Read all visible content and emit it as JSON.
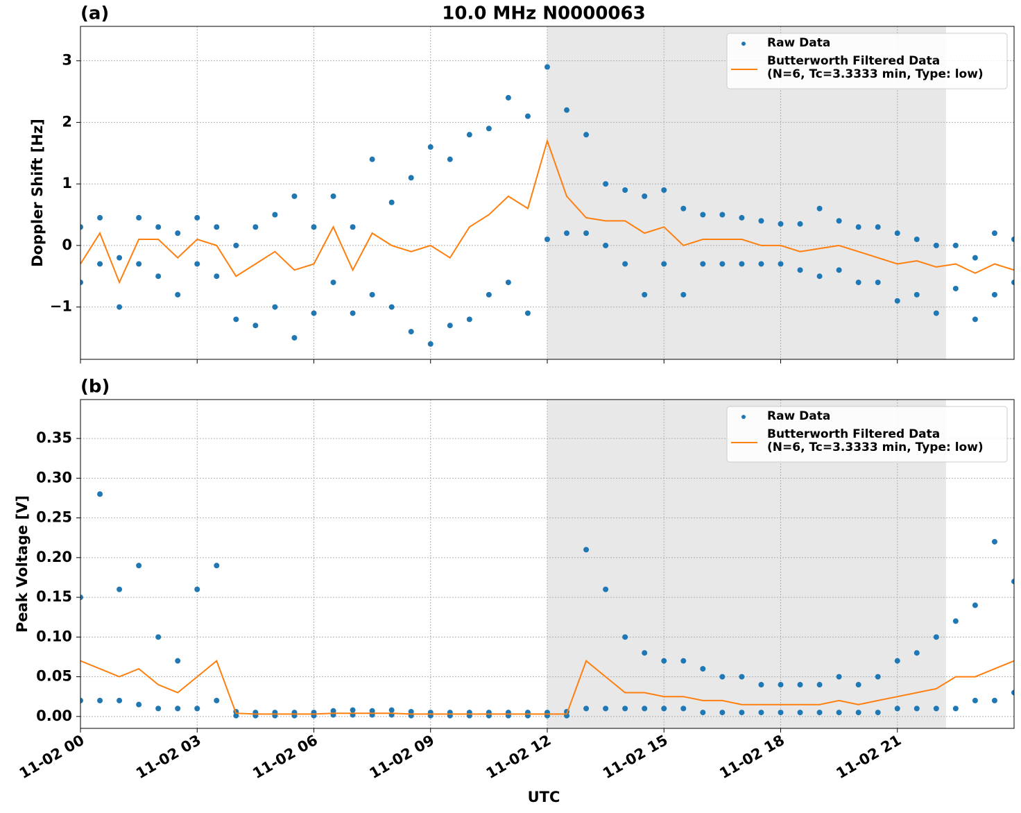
{
  "chart_data": [
    {
      "type": "scatter_line",
      "title": "10.0 MHz N0000063",
      "panel_label": "(a)",
      "ylabel": "Doppler Shift [Hz]",
      "xlim": [
        0,
        24
      ],
      "xticks": [
        0,
        3,
        6,
        9,
        12,
        15,
        18,
        21
      ],
      "show_xtick_labels": false,
      "ylim": [
        -1.85,
        3.56
      ],
      "yticks": [
        {
          "value": -1,
          "label": "−1"
        },
        0,
        1,
        2,
        3
      ],
      "grid": true,
      "shade": {
        "xlim": [
          12,
          22.25
        ],
        "color": "#e8e8e8"
      },
      "legend": "upper right",
      "series": [
        {
          "name": "Raw Data",
          "kind": "points",
          "color": "#1f77b4",
          "x": [
            0,
            0,
            0.5,
            0.5,
            1,
            1,
            1.5,
            1.5,
            2,
            2,
            2.5,
            2.5,
            3,
            3,
            3.5,
            3.5,
            4,
            4,
            4.5,
            4.5,
            5,
            5,
            5.5,
            5.5,
            6,
            6,
            6.5,
            6.5,
            7,
            7,
            7.5,
            7.5,
            8,
            8,
            8.5,
            8.5,
            9,
            9,
            9.5,
            9.5,
            10,
            10,
            10.5,
            10.5,
            11,
            11,
            11.5,
            11.5,
            12,
            12,
            12.5,
            12.5,
            13,
            13,
            13.5,
            13.5,
            14,
            14,
            14.5,
            14.5,
            15,
            15,
            15.5,
            15.5,
            16,
            16,
            16.5,
            16.5,
            17,
            17,
            17.5,
            17.5,
            18,
            18,
            18.5,
            18.5,
            19,
            19,
            19.5,
            19.5,
            20,
            20,
            20.5,
            20.5,
            21,
            21,
            21.5,
            21.5,
            22,
            22,
            22.5,
            22.5,
            23,
            23,
            23.5,
            23.5,
            24,
            24
          ],
          "values": [
            0.3,
            -0.6,
            0.45,
            -0.3,
            -0.2,
            -1.0,
            0.45,
            -0.3,
            0.3,
            -0.5,
            0.2,
            -0.8,
            0.45,
            -0.3,
            0.3,
            -0.5,
            0.0,
            -1.2,
            0.3,
            -1.3,
            0.5,
            -1.0,
            0.8,
            -1.5,
            0.3,
            -1.1,
            0.8,
            -0.6,
            0.3,
            -1.1,
            1.4,
            -0.8,
            0.7,
            -1.0,
            1.1,
            -1.4,
            1.6,
            -1.6,
            1.4,
            -1.3,
            1.8,
            -1.2,
            1.9,
            -0.8,
            2.4,
            -0.6,
            2.1,
            -1.1,
            2.9,
            0.1,
            2.2,
            0.2,
            1.8,
            0.2,
            1.0,
            0.0,
            0.9,
            -0.3,
            0.8,
            -0.8,
            0.9,
            -0.3,
            0.6,
            -0.8,
            0.5,
            -0.3,
            0.5,
            -0.3,
            0.45,
            -0.3,
            0.4,
            -0.3,
            0.35,
            -0.3,
            0.35,
            -0.4,
            0.6,
            -0.5,
            0.4,
            -0.4,
            0.3,
            -0.6,
            0.3,
            -0.6,
            0.2,
            -0.9,
            0.1,
            -0.8,
            0.0,
            -1.1,
            0.0,
            -0.7,
            -0.2,
            -1.2,
            0.2,
            -0.8,
            0.1,
            -0.6
          ]
        },
        {
          "name": "Butterworth Filtered Data\n(N=6, Tc=3.3333 min, Type: low)",
          "kind": "line",
          "color": "#ff7f0e",
          "x": [
            0,
            0.5,
            1,
            1.5,
            2,
            2.5,
            3,
            3.5,
            4,
            4.5,
            5,
            5.5,
            6,
            6.5,
            7,
            7.5,
            8,
            8.5,
            9,
            9.5,
            10,
            10.5,
            11,
            11.5,
            12,
            12.5,
            13,
            13.5,
            14,
            14.5,
            15,
            15.5,
            16,
            16.5,
            17,
            17.5,
            18,
            18.5,
            19,
            19.5,
            20,
            20.5,
            21,
            21.5,
            22,
            22.5,
            23,
            23.5,
            24
          ],
          "values": [
            -0.3,
            0.2,
            -0.6,
            0.1,
            0.1,
            -0.2,
            0.1,
            0.0,
            -0.5,
            -0.3,
            -0.1,
            -0.4,
            -0.3,
            0.3,
            -0.4,
            0.2,
            0.0,
            -0.1,
            0.0,
            -0.2,
            0.3,
            0.5,
            0.8,
            0.6,
            1.7,
            0.8,
            0.45,
            0.4,
            0.4,
            0.2,
            0.3,
            0.0,
            0.1,
            0.1,
            0.1,
            0.0,
            0.0,
            -0.1,
            -0.05,
            0.0,
            -0.1,
            -0.2,
            -0.3,
            -0.25,
            -0.35,
            -0.3,
            -0.45,
            -0.3,
            -0.4
          ]
        }
      ]
    },
    {
      "type": "scatter_line",
      "panel_label": "(b)",
      "ylabel": "Peak Voltage [V]",
      "xlabel": "UTC",
      "xlim": [
        0,
        24
      ],
      "xticks": [
        {
          "value": 0,
          "label": "11-02 00"
        },
        {
          "value": 3,
          "label": "11-02 03"
        },
        {
          "value": 6,
          "label": "11-02 06"
        },
        {
          "value": 9,
          "label": "11-02 09"
        },
        {
          "value": 12,
          "label": "11-02 12"
        },
        {
          "value": 15,
          "label": "11-02 15"
        },
        {
          "value": 18,
          "label": "11-02 18"
        },
        {
          "value": 21,
          "label": "11-02 21"
        }
      ],
      "show_xtick_labels": true,
      "ylim": [
        -0.015,
        0.399
      ],
      "yticks": [
        {
          "value": 0,
          "label": "0.00"
        },
        0.05,
        {
          "value": 0.1,
          "label": "0.10"
        },
        0.15,
        {
          "value": 0.2,
          "label": "0.20"
        },
        0.25,
        {
          "value": 0.3,
          "label": "0.30"
        },
        0.35
      ],
      "grid": true,
      "shade": {
        "xlim": [
          12,
          22.25
        ],
        "color": "#e8e8e8"
      },
      "legend": "upper right",
      "series": [
        {
          "name": "Raw Data",
          "kind": "points",
          "color": "#1f77b4",
          "x": [
            0,
            0,
            0.5,
            0.5,
            1,
            1,
            1.5,
            1.5,
            2,
            2,
            2.5,
            2.5,
            3,
            3,
            3.5,
            3.5,
            4,
            4,
            4.5,
            4.5,
            5,
            5,
            5.5,
            5.5,
            6,
            6,
            6.5,
            6.5,
            7,
            7,
            7.5,
            7.5,
            8,
            8,
            8.5,
            8.5,
            9,
            9,
            9.5,
            9.5,
            10,
            10,
            10.5,
            10.5,
            11,
            11,
            11.5,
            11.5,
            12,
            12,
            12.5,
            12.5,
            13,
            13,
            13.5,
            13.5,
            14,
            14,
            14.5,
            14.5,
            15,
            15,
            15.5,
            15.5,
            16,
            16,
            16.5,
            16.5,
            17,
            17,
            17.5,
            17.5,
            18,
            18,
            18.5,
            18.5,
            19,
            19,
            19.5,
            19.5,
            20,
            20,
            20.5,
            20.5,
            21,
            21,
            21.5,
            21.5,
            22,
            22,
            22.5,
            22.5,
            23,
            23,
            23.5,
            23.5,
            24,
            24
          ],
          "values": [
            0.15,
            0.02,
            0.28,
            0.02,
            0.16,
            0.02,
            0.19,
            0.015,
            0.1,
            0.01,
            0.07,
            0.01,
            0.16,
            0.01,
            0.19,
            0.02,
            0.006,
            0.001,
            0.005,
            0.001,
            0.005,
            0.001,
            0.005,
            0.001,
            0.005,
            0.001,
            0.007,
            0.002,
            0.008,
            0.002,
            0.007,
            0.002,
            0.008,
            0.002,
            0.006,
            0.001,
            0.005,
            0.001,
            0.005,
            0.001,
            0.005,
            0.001,
            0.005,
            0.001,
            0.005,
            0.001,
            0.005,
            0.001,
            0.005,
            0.001,
            0.006,
            0.001,
            0.21,
            0.01,
            0.16,
            0.01,
            0.1,
            0.01,
            0.08,
            0.01,
            0.07,
            0.01,
            0.07,
            0.01,
            0.06,
            0.005,
            0.05,
            0.005,
            0.05,
            0.005,
            0.04,
            0.005,
            0.04,
            0.005,
            0.04,
            0.005,
            0.04,
            0.005,
            0.05,
            0.005,
            0.04,
            0.005,
            0.05,
            0.005,
            0.07,
            0.01,
            0.08,
            0.01,
            0.1,
            0.01,
            0.12,
            0.01,
            0.14,
            0.02,
            0.22,
            0.02,
            0.17,
            0.03
          ]
        },
        {
          "name": "Butterworth Filtered Data\n(N=6, Tc=3.3333 min, Type: low)",
          "kind": "line",
          "color": "#ff7f0e",
          "x": [
            0,
            0.5,
            1,
            1.5,
            2,
            2.5,
            3,
            3.5,
            4,
            4.5,
            5,
            5.5,
            6,
            6.5,
            7,
            7.5,
            8,
            8.5,
            9,
            9.5,
            10,
            10.5,
            11,
            11.5,
            12,
            12.5,
            13,
            13.5,
            14,
            14.5,
            15,
            15.5,
            16,
            16.5,
            17,
            17.5,
            18,
            18.5,
            19,
            19.5,
            20,
            20.5,
            21,
            21.5,
            22,
            22.5,
            23,
            23.5,
            24
          ],
          "values": [
            0.07,
            0.06,
            0.05,
            0.06,
            0.04,
            0.03,
            0.05,
            0.07,
            0.004,
            0.003,
            0.003,
            0.003,
            0.003,
            0.004,
            0.004,
            0.004,
            0.004,
            0.003,
            0.003,
            0.003,
            0.003,
            0.003,
            0.003,
            0.003,
            0.003,
            0.003,
            0.07,
            0.05,
            0.03,
            0.03,
            0.025,
            0.025,
            0.02,
            0.02,
            0.015,
            0.015,
            0.015,
            0.015,
            0.015,
            0.02,
            0.015,
            0.02,
            0.025,
            0.03,
            0.035,
            0.05,
            0.05,
            0.06,
            0.07
          ]
        }
      ]
    }
  ]
}
